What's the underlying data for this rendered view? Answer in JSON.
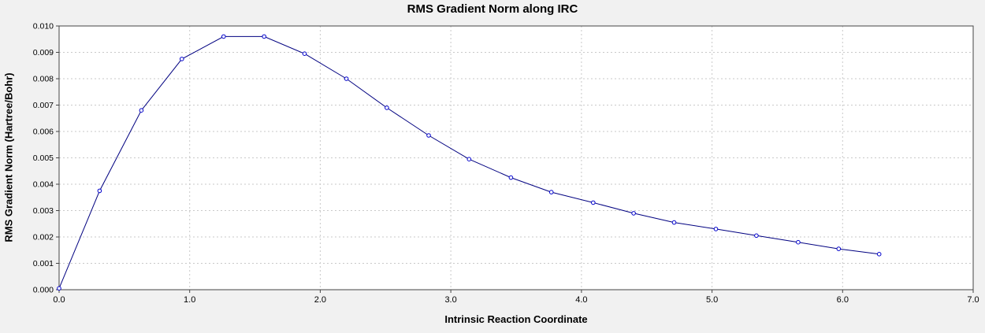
{
  "page": {
    "background": "#f1f1f1"
  },
  "chart_data": {
    "type": "line",
    "title": "RMS Gradient Norm along IRC",
    "xlabel": "Intrinsic Reaction Coordinate",
    "ylabel": "RMS Gradient Norm (Hartree/Bohr)",
    "xlim": [
      0,
      7
    ],
    "ylim": [
      0,
      0.01
    ],
    "grid": "dashed",
    "legend": "none",
    "x_ticks": [
      0,
      1,
      2,
      3,
      4,
      5,
      6,
      7
    ],
    "x_tick_labels": [
      "0.0",
      "1.0",
      "2.0",
      "3.0",
      "4.0",
      "5.0",
      "6.0",
      "7.0"
    ],
    "y_ticks": [
      0,
      0.001,
      0.002,
      0.003,
      0.004,
      0.005,
      0.006,
      0.007,
      0.008,
      0.009,
      0.01
    ],
    "y_tick_labels": [
      "0.000",
      "0.001",
      "0.002",
      "0.003",
      "0.004",
      "0.005",
      "0.006",
      "0.007",
      "0.008",
      "0.009",
      "0.010"
    ],
    "series": [
      {
        "name": "RMS Gradient Norm",
        "marker": "open-circle",
        "x": [
          0.0,
          0.31,
          0.63,
          0.94,
          1.26,
          1.57,
          1.88,
          2.2,
          2.51,
          2.83,
          3.14,
          3.46,
          3.77,
          4.09,
          4.4,
          4.71,
          5.03,
          5.34,
          5.66,
          5.97,
          6.28
        ],
        "y": [
          5e-05,
          0.00375,
          0.0068,
          0.00875,
          0.0096,
          0.0096,
          0.00895,
          0.008,
          0.0069,
          0.00585,
          0.00495,
          0.00425,
          0.0037,
          0.0033,
          0.0029,
          0.00255,
          0.0023,
          0.00205,
          0.0018,
          0.00155,
          0.00135
        ]
      }
    ],
    "colors": {
      "background": "#f1f1f1",
      "plot_bg": "#ffffff",
      "grid": "#c9c9c9",
      "axis": "#444444",
      "line": "#000080",
      "marker_stroke": "#0000cc",
      "marker_fill": "#ffffff",
      "text": "#000000"
    }
  }
}
